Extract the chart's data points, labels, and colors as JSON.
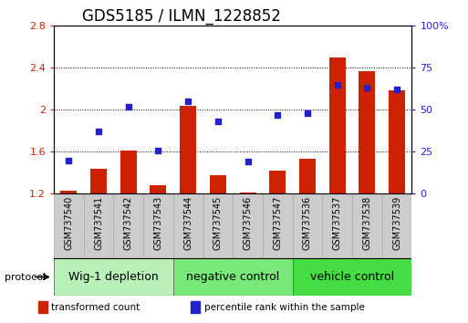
{
  "title": "GDS5185 / ILMN_1228852",
  "samples": [
    "GSM737540",
    "GSM737541",
    "GSM737542",
    "GSM737543",
    "GSM737544",
    "GSM737545",
    "GSM737546",
    "GSM737547",
    "GSM737536",
    "GSM737537",
    "GSM737538",
    "GSM737539"
  ],
  "transformed_counts": [
    1.23,
    1.44,
    1.61,
    1.28,
    2.04,
    1.38,
    1.21,
    1.42,
    1.53,
    2.5,
    2.37,
    2.19
  ],
  "percentile_ranks": [
    20,
    37,
    52,
    26,
    55,
    43,
    19,
    47,
    48,
    65,
    63,
    62
  ],
  "groups": [
    {
      "label": "Wig-1 depletion",
      "start": 0,
      "end": 4,
      "color": "#b8f0b8"
    },
    {
      "label": "negative control",
      "start": 4,
      "end": 8,
      "color": "#78e878"
    },
    {
      "label": "vehicle control",
      "start": 8,
      "end": 12,
      "color": "#44dd44"
    }
  ],
  "ylim_left": [
    1.2,
    2.8
  ],
  "ylim_right": [
    0,
    100
  ],
  "yticks_left": [
    1.2,
    1.6,
    2.0,
    2.4,
    2.8
  ],
  "yticks_right": [
    0,
    25,
    50,
    75,
    100
  ],
  "ytick_labels_right": [
    "0",
    "25",
    "50",
    "75",
    "100%"
  ],
  "bar_color": "#cc2200",
  "dot_color": "#2222cc",
  "bar_width": 0.55,
  "bar_baseline": 1.2,
  "legend_items": [
    {
      "label": "transformed count",
      "color": "#cc2200"
    },
    {
      "label": "percentile rank within the sample",
      "color": "#2222cc"
    }
  ],
  "protocol_label": "protocol",
  "title_fontsize": 12,
  "tick_fontsize": 8,
  "label_fontsize": 7,
  "group_label_fontsize": 9
}
